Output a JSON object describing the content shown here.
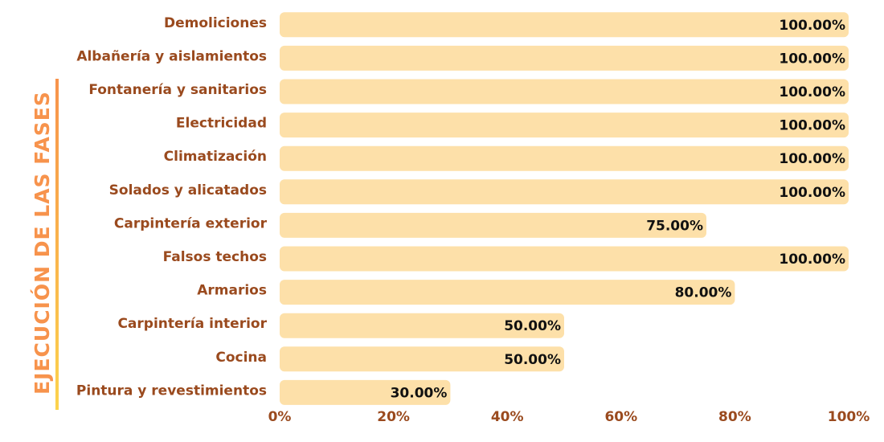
{
  "chart_data": {
    "type": "bar",
    "orientation": "horizontal",
    "y_axis_label": "EJECUCIÓN DE LAS FASES",
    "categories": [
      "Demoliciones",
      "Albañería y aislamientos",
      "Fontanería y sanitarios",
      "Electricidad",
      "Climatización",
      "Solados y alicatados",
      "Carpintería exterior",
      "Falsos techos",
      "Armarios",
      "Carpintería interior",
      "Cocina",
      "Pintura y revestimientos"
    ],
    "values": [
      100,
      100,
      100,
      100,
      100,
      100,
      75,
      100,
      80,
      50,
      50,
      30
    ],
    "value_labels": [
      "100.00%",
      "100.00%",
      "100.00%",
      "100.00%",
      "100.00%",
      "100.00%",
      "75.00%",
      "100.00%",
      "80.00%",
      "50.00%",
      "50.00%",
      "30.00%"
    ],
    "color": "#fde0a9",
    "xlim": [
      0,
      100
    ],
    "xticks": [
      {
        "value": 0,
        "label": "0%"
      },
      {
        "value": 20,
        "label": "20%"
      },
      {
        "value": 40,
        "label": "40%"
      },
      {
        "value": 60,
        "label": "60%"
      },
      {
        "value": 80,
        "label": "80%"
      },
      {
        "value": 100,
        "label": "100%"
      }
    ],
    "grid": false
  }
}
